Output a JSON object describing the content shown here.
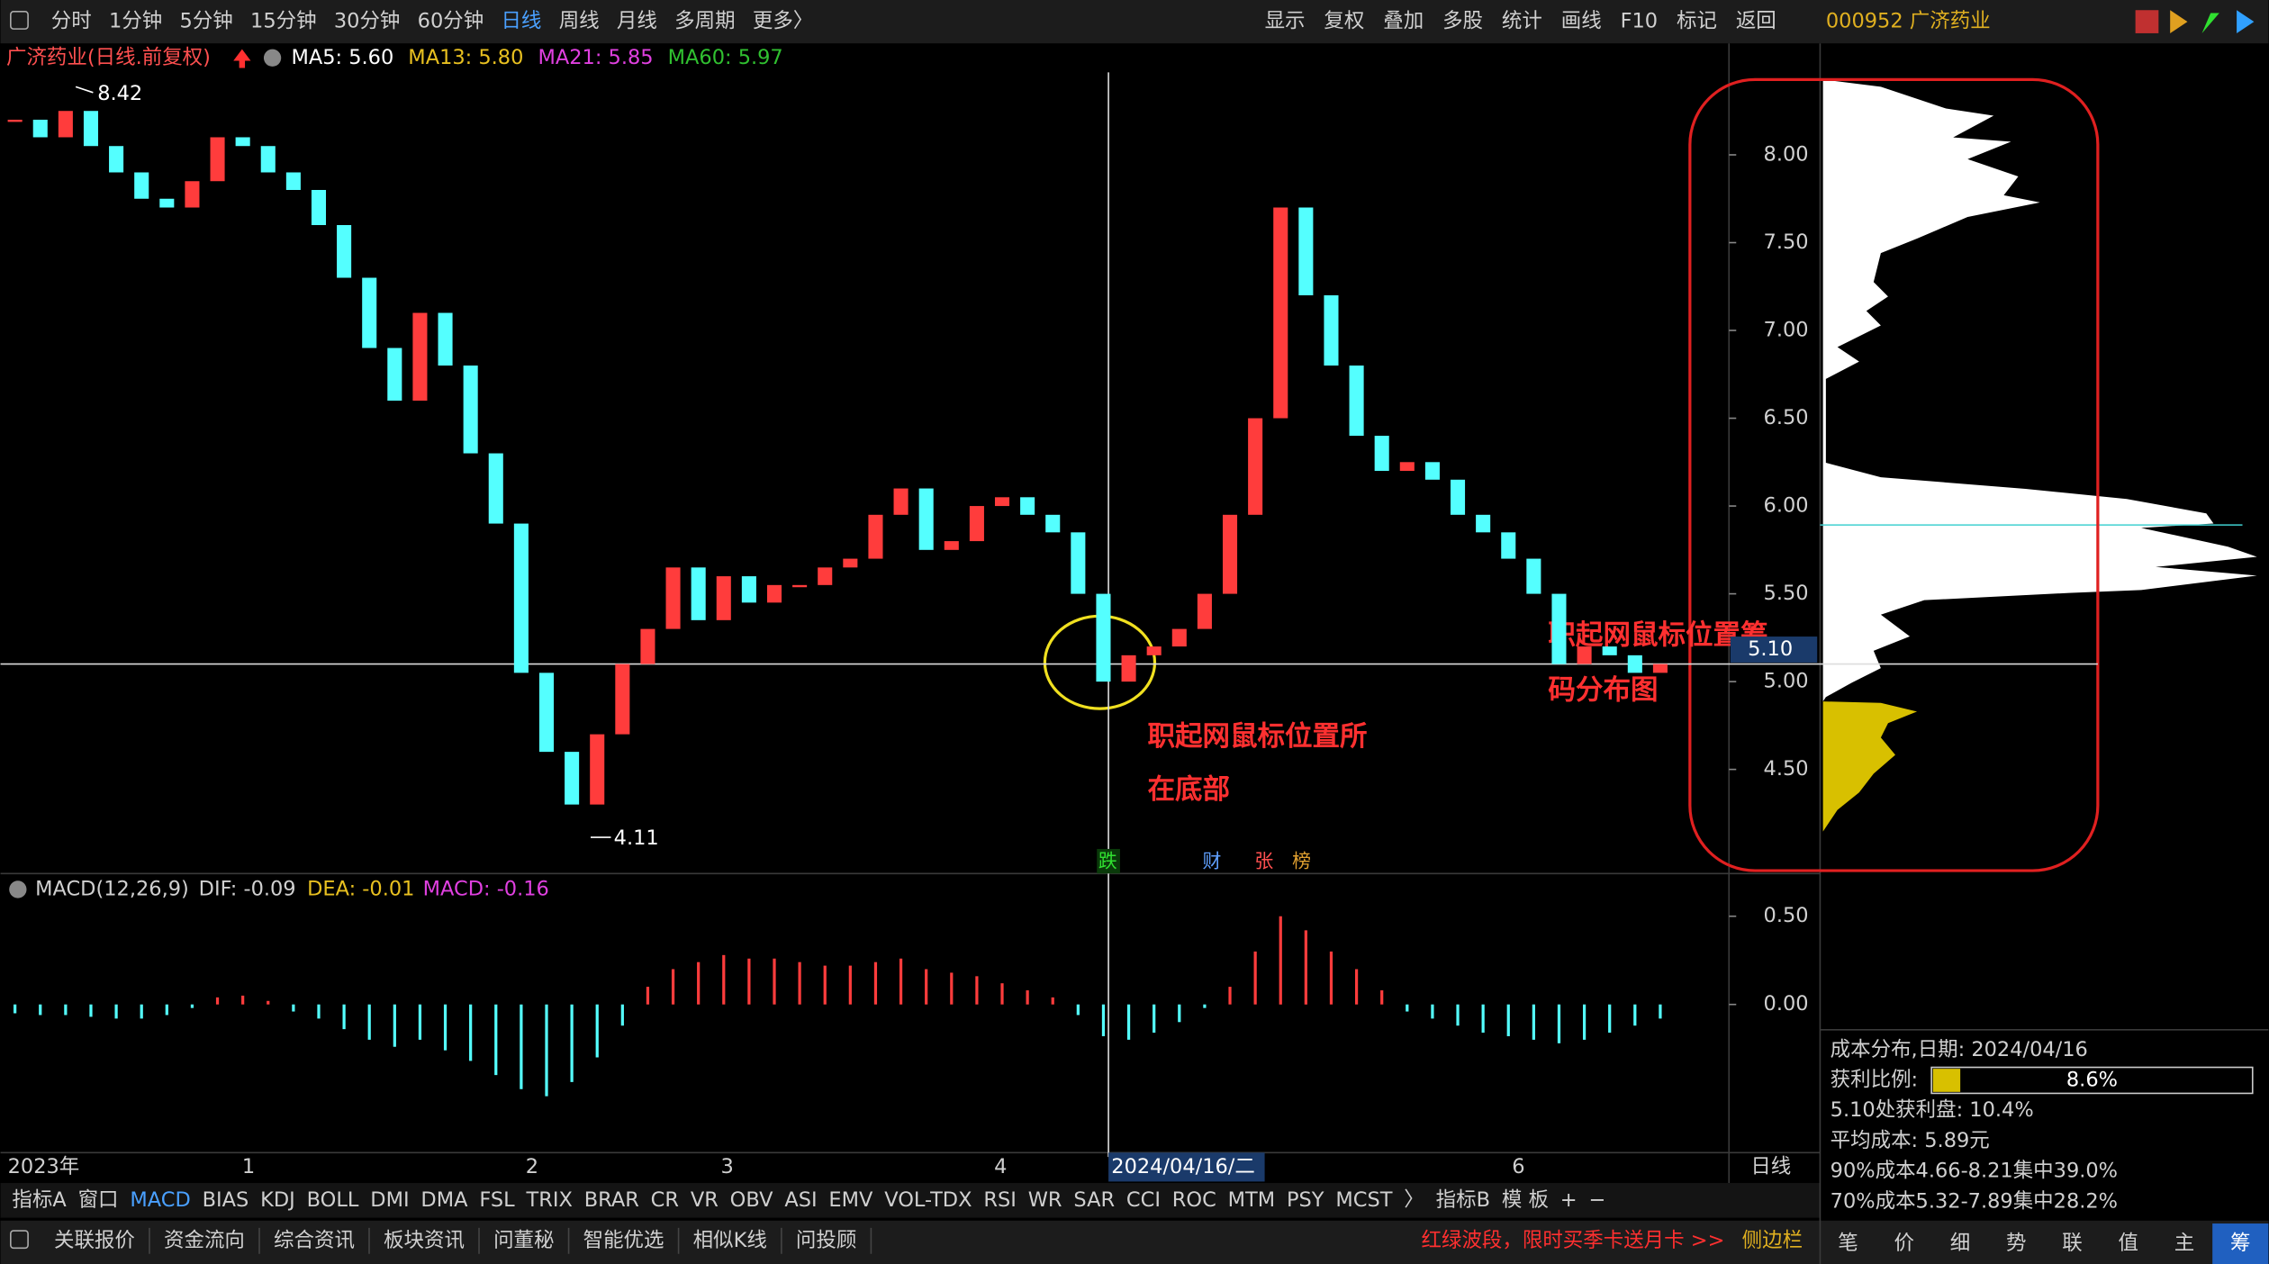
{
  "toolbar": {
    "periods": [
      "分时",
      "1分钟",
      "5分钟",
      "15分钟",
      "30分钟",
      "60分钟",
      "日线",
      "周线",
      "月线",
      "多周期",
      "更多〉"
    ],
    "active_period": 6,
    "actions": [
      "显示",
      "复权",
      "叠加",
      "多股",
      "统计",
      "画线",
      "F10",
      "标记",
      "返回"
    ],
    "stock": "000952 广济药业"
  },
  "chart_header": {
    "name": "广济药业(日线.前复权)",
    "ma": [
      {
        "text": "MA5: 5.60",
        "color": "#ffffff"
      },
      {
        "text": "MA13: 5.80",
        "color": "#e8c020"
      },
      {
        "text": "MA21: 5.85",
        "color": "#e040e0"
      },
      {
        "text": "MA60: 5.97",
        "color": "#30c030"
      }
    ]
  },
  "price_chart": {
    "type": "candlestick",
    "ylim": [
      3.94,
      8.47
    ],
    "yticks": [
      {
        "value": 8,
        "label": "8.00"
      },
      {
        "value": 7.5,
        "label": "7.50"
      },
      {
        "value": 7,
        "label": "7.00"
      },
      {
        "value": 6.5,
        "label": "6.50"
      },
      {
        "value": 6,
        "label": "6.00"
      },
      {
        "value": 5.5,
        "label": "5.50"
      },
      {
        "value": 5,
        "label": "5.00"
      },
      {
        "value": 4.5,
        "label": "4.50"
      }
    ],
    "closes": [
      8.2,
      8.1,
      8.25,
      8.05,
      7.9,
      7.75,
      7.7,
      7.85,
      8.1,
      8.05,
      7.9,
      7.8,
      7.6,
      7.3,
      6.9,
      6.6,
      7.1,
      6.8,
      6.3,
      5.9,
      5.05,
      4.6,
      4.3,
      4.7,
      5.1,
      5.3,
      5.65,
      5.35,
      5.6,
      5.45,
      5.55,
      5.55,
      5.65,
      5.7,
      5.95,
      6.1,
      5.75,
      5.8,
      6.0,
      6.05,
      5.95,
      5.85,
      5.5,
      5.0,
      5.15,
      5.2,
      5.3,
      5.5,
      5.95,
      6.5,
      7.7,
      7.2,
      6.8,
      6.4,
      6.2,
      6.25,
      6.15,
      5.95,
      5.85,
      5.7,
      5.5,
      5.1,
      5.2,
      5.15,
      5.05,
      5.1
    ],
    "up_color": "#ff3c3c",
    "down_color": "#54ffff",
    "crosshair": {
      "value": 5.1,
      "label": "5.10"
    },
    "high_label": "8.42",
    "low_label": "4.11",
    "events": [
      "跌",
      "财",
      "张",
      "榜"
    ],
    "annotation_bottom": [
      "职起网鼠标位置所",
      "在底部"
    ],
    "annotation_chip": [
      "职起网鼠标位置筹",
      "码分布图"
    ]
  },
  "macd": {
    "type": "bar",
    "title": "MACD(12,26,9)",
    "dif": "DIF: -0.09",
    "dea": "DEA: -0.01",
    "macd": "MACD: -0.16",
    "ylim": [
      -0.84,
      0.57
    ],
    "yticks": [
      {
        "value": 0.5,
        "label": "0.50"
      },
      {
        "value": 0,
        "label": "0.00"
      }
    ],
    "values": [
      -0.05,
      -0.06,
      -0.06,
      -0.07,
      -0.08,
      -0.08,
      -0.06,
      -0.02,
      0.04,
      0.05,
      0.02,
      -0.04,
      -0.08,
      -0.14,
      -0.2,
      -0.24,
      -0.2,
      -0.26,
      -0.32,
      -0.4,
      -0.48,
      -0.52,
      -0.44,
      -0.3,
      -0.12,
      0.1,
      0.2,
      0.24,
      0.28,
      0.26,
      0.26,
      0.24,
      0.22,
      0.22,
      0.24,
      0.26,
      0.2,
      0.18,
      0.16,
      0.12,
      0.08,
      0.04,
      -0.06,
      -0.18,
      -0.2,
      -0.16,
      -0.1,
      -0.02,
      0.1,
      0.3,
      0.5,
      0.42,
      0.3,
      0.2,
      0.08,
      -0.04,
      -0.08,
      -0.12,
      -0.16,
      -0.18,
      -0.2,
      -0.22,
      -0.2,
      -0.16,
      -0.12,
      -0.08
    ]
  },
  "date_axis": {
    "labels": [
      "2023年",
      "1",
      "2",
      "3",
      "4",
      "6"
    ],
    "cursor": "2024/04/16/二",
    "period": "日线"
  },
  "indicator_tabs": {
    "items": [
      "指标A",
      "窗口",
      "MACD",
      "BIAS",
      "KDJ",
      "BOLL",
      "DMI",
      "DMA",
      "FSL",
      "TRIX",
      "BRAR",
      "CR",
      "VR",
      "OBV",
      "ASI",
      "EMV",
      "VOL-TDX",
      "RSI",
      "WR",
      "SAR",
      "CCI",
      "ROC",
      "MTM",
      "PSY",
      "MCST",
      "〉",
      "指标B",
      "模 板",
      "+",
      "−"
    ],
    "active": 2
  },
  "bottom_bar": {
    "items": [
      "关联报价",
      "资金流向",
      "综合资讯",
      "板块资讯",
      "问董秘",
      "智能优选",
      "相似K线",
      "问投顾"
    ],
    "promo": "红绿波段，限时买季卡送月卡 >>",
    "sidebar": "侧边栏"
  },
  "cost_panel": {
    "title": "成本分布,日期: 2024/04/16",
    "profit_label": "获利比例:",
    "profit": {
      "value": 8.6,
      "label": "8.6%"
    },
    "lines": [
      "5.10处获利盘: 10.4%",
      "平均成本: 5.89元",
      "90%成本4.66-8.21集中39.0%",
      "70%成本5.32-7.89集中28.2%"
    ]
  },
  "side_tabs": {
    "items": [
      "笔",
      "价",
      "细",
      "势",
      "联",
      "值",
      "主",
      "筹"
    ],
    "active": 7
  }
}
